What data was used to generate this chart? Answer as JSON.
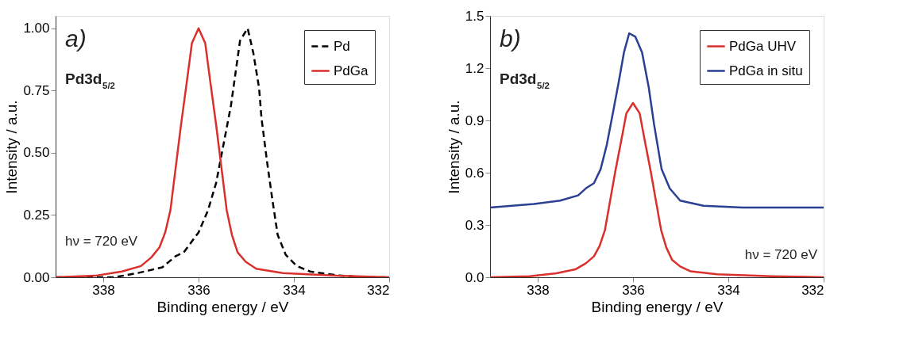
{
  "chart_data": [
    {
      "type": "line",
      "xlabel": "Binding energy / eV",
      "ylabel": "Intensity / a.u.",
      "xlim": [
        339,
        332
      ],
      "xticks": [
        338,
        336,
        334,
        332
      ],
      "ylim": [
        0,
        1.05
      ],
      "yticks": [
        {
          "value": 0,
          "label": "0.00"
        },
        {
          "value": 0.25,
          "label": "0.25"
        },
        {
          "value": 0.5,
          "label": "0.50"
        },
        {
          "value": 0.75,
          "label": "0.75"
        },
        {
          "value": 1,
          "label": "1.00"
        }
      ],
      "grid": false,
      "legend": "top right",
      "marker": "none",
      "annotations": [
        "a)",
        "Pd3d$_{5/2}$",
        "hν = 720 eV"
      ],
      "series": [
        {
          "name": "Pd",
          "color": "#000000",
          "line_style": "dashed",
          "x": [
            339,
            337.77,
            337.27,
            336.76,
            336.48,
            336.31,
            336,
            335.8,
            335.63,
            335.46,
            335.32,
            335.13,
            334.97,
            334.85,
            334.73,
            334.68,
            334.56,
            334.45,
            334.34,
            334.17,
            333.94,
            333.66,
            333.1,
            332.54,
            332
          ],
          "values": [
            0,
            0,
            0.017,
            0.04,
            0.085,
            0.1,
            0.18,
            0.27,
            0.38,
            0.55,
            0.69,
            0.95,
            1.0,
            0.9,
            0.76,
            0.64,
            0.46,
            0.31,
            0.17,
            0.09,
            0.045,
            0.023,
            0.008,
            0,
            0
          ]
        },
        {
          "name": "PdGa",
          "color": "#d9302c",
          "line_style": "solid",
          "x": [
            339,
            338.17,
            337.61,
            337.21,
            336.99,
            336.82,
            336.7,
            336.59,
            336.48,
            336.37,
            336.25,
            336.14,
            336,
            335.86,
            335.75,
            335.63,
            335.52,
            335.41,
            335.3,
            335.18,
            335.01,
            334.79,
            334.23,
            333.1,
            332
          ],
          "values": [
            0,
            0.006,
            0.023,
            0.045,
            0.08,
            0.12,
            0.18,
            0.27,
            0.44,
            0.61,
            0.78,
            0.94,
            1.0,
            0.94,
            0.78,
            0.61,
            0.44,
            0.27,
            0.17,
            0.1,
            0.062,
            0.034,
            0.017,
            0.006,
            0
          ]
        }
      ]
    },
    {
      "type": "line",
      "xlabel": "Binding energy / eV",
      "ylabel": "Intensity / a.u.",
      "xlim": [
        339,
        332
      ],
      "xticks": [
        338,
        336,
        334,
        332
      ],
      "ylim": [
        0,
        1.5
      ],
      "yticks": [
        {
          "value": 0,
          "label": "0.0"
        },
        {
          "value": 0.3,
          "label": "0.3"
        },
        {
          "value": 0.6,
          "label": "0.6"
        },
        {
          "value": 0.9,
          "label": "0.9"
        },
        {
          "value": 1.2,
          "label": "1.2"
        },
        1.5
      ],
      "grid": false,
      "legend": "top right",
      "marker": "none",
      "annotations": [
        "b)",
        "Pd3d$_{5/2}$",
        "hν = 720 eV"
      ],
      "series": [
        {
          "name": "PdGa UHV",
          "color": "#d9302c",
          "line_style": "solid",
          "x": [
            339,
            338.17,
            337.61,
            337.21,
            336.99,
            336.82,
            336.7,
            336.59,
            336.48,
            336.37,
            336.25,
            336.14,
            336,
            335.86,
            335.75,
            335.63,
            335.52,
            335.41,
            335.3,
            335.18,
            335.01,
            334.79,
            334.23,
            333.1,
            332
          ],
          "values": [
            0,
            0.006,
            0.023,
            0.045,
            0.08,
            0.12,
            0.18,
            0.27,
            0.44,
            0.61,
            0.78,
            0.94,
            1.0,
            0.94,
            0.78,
            0.61,
            0.44,
            0.27,
            0.17,
            0.1,
            0.062,
            0.034,
            0.017,
            0.006,
            0
          ]
        },
        {
          "name": "PdGa in situ",
          "color": "#2b3f93",
          "line_style": "solid",
          "x": [
            339,
            338.08,
            337.53,
            337.15,
            336.99,
            336.82,
            336.68,
            336.55,
            336.41,
            336.3,
            336.19,
            336.08,
            335.95,
            335.81,
            335.67,
            335.56,
            335.4,
            335.23,
            335.01,
            334.52,
            333.7,
            332
          ],
          "values": [
            0.4,
            0.42,
            0.44,
            0.47,
            0.51,
            0.54,
            0.62,
            0.76,
            0.96,
            1.12,
            1.29,
            1.4,
            1.38,
            1.29,
            1.09,
            0.88,
            0.62,
            0.51,
            0.44,
            0.41,
            0.4,
            0.4
          ]
        }
      ]
    }
  ]
}
